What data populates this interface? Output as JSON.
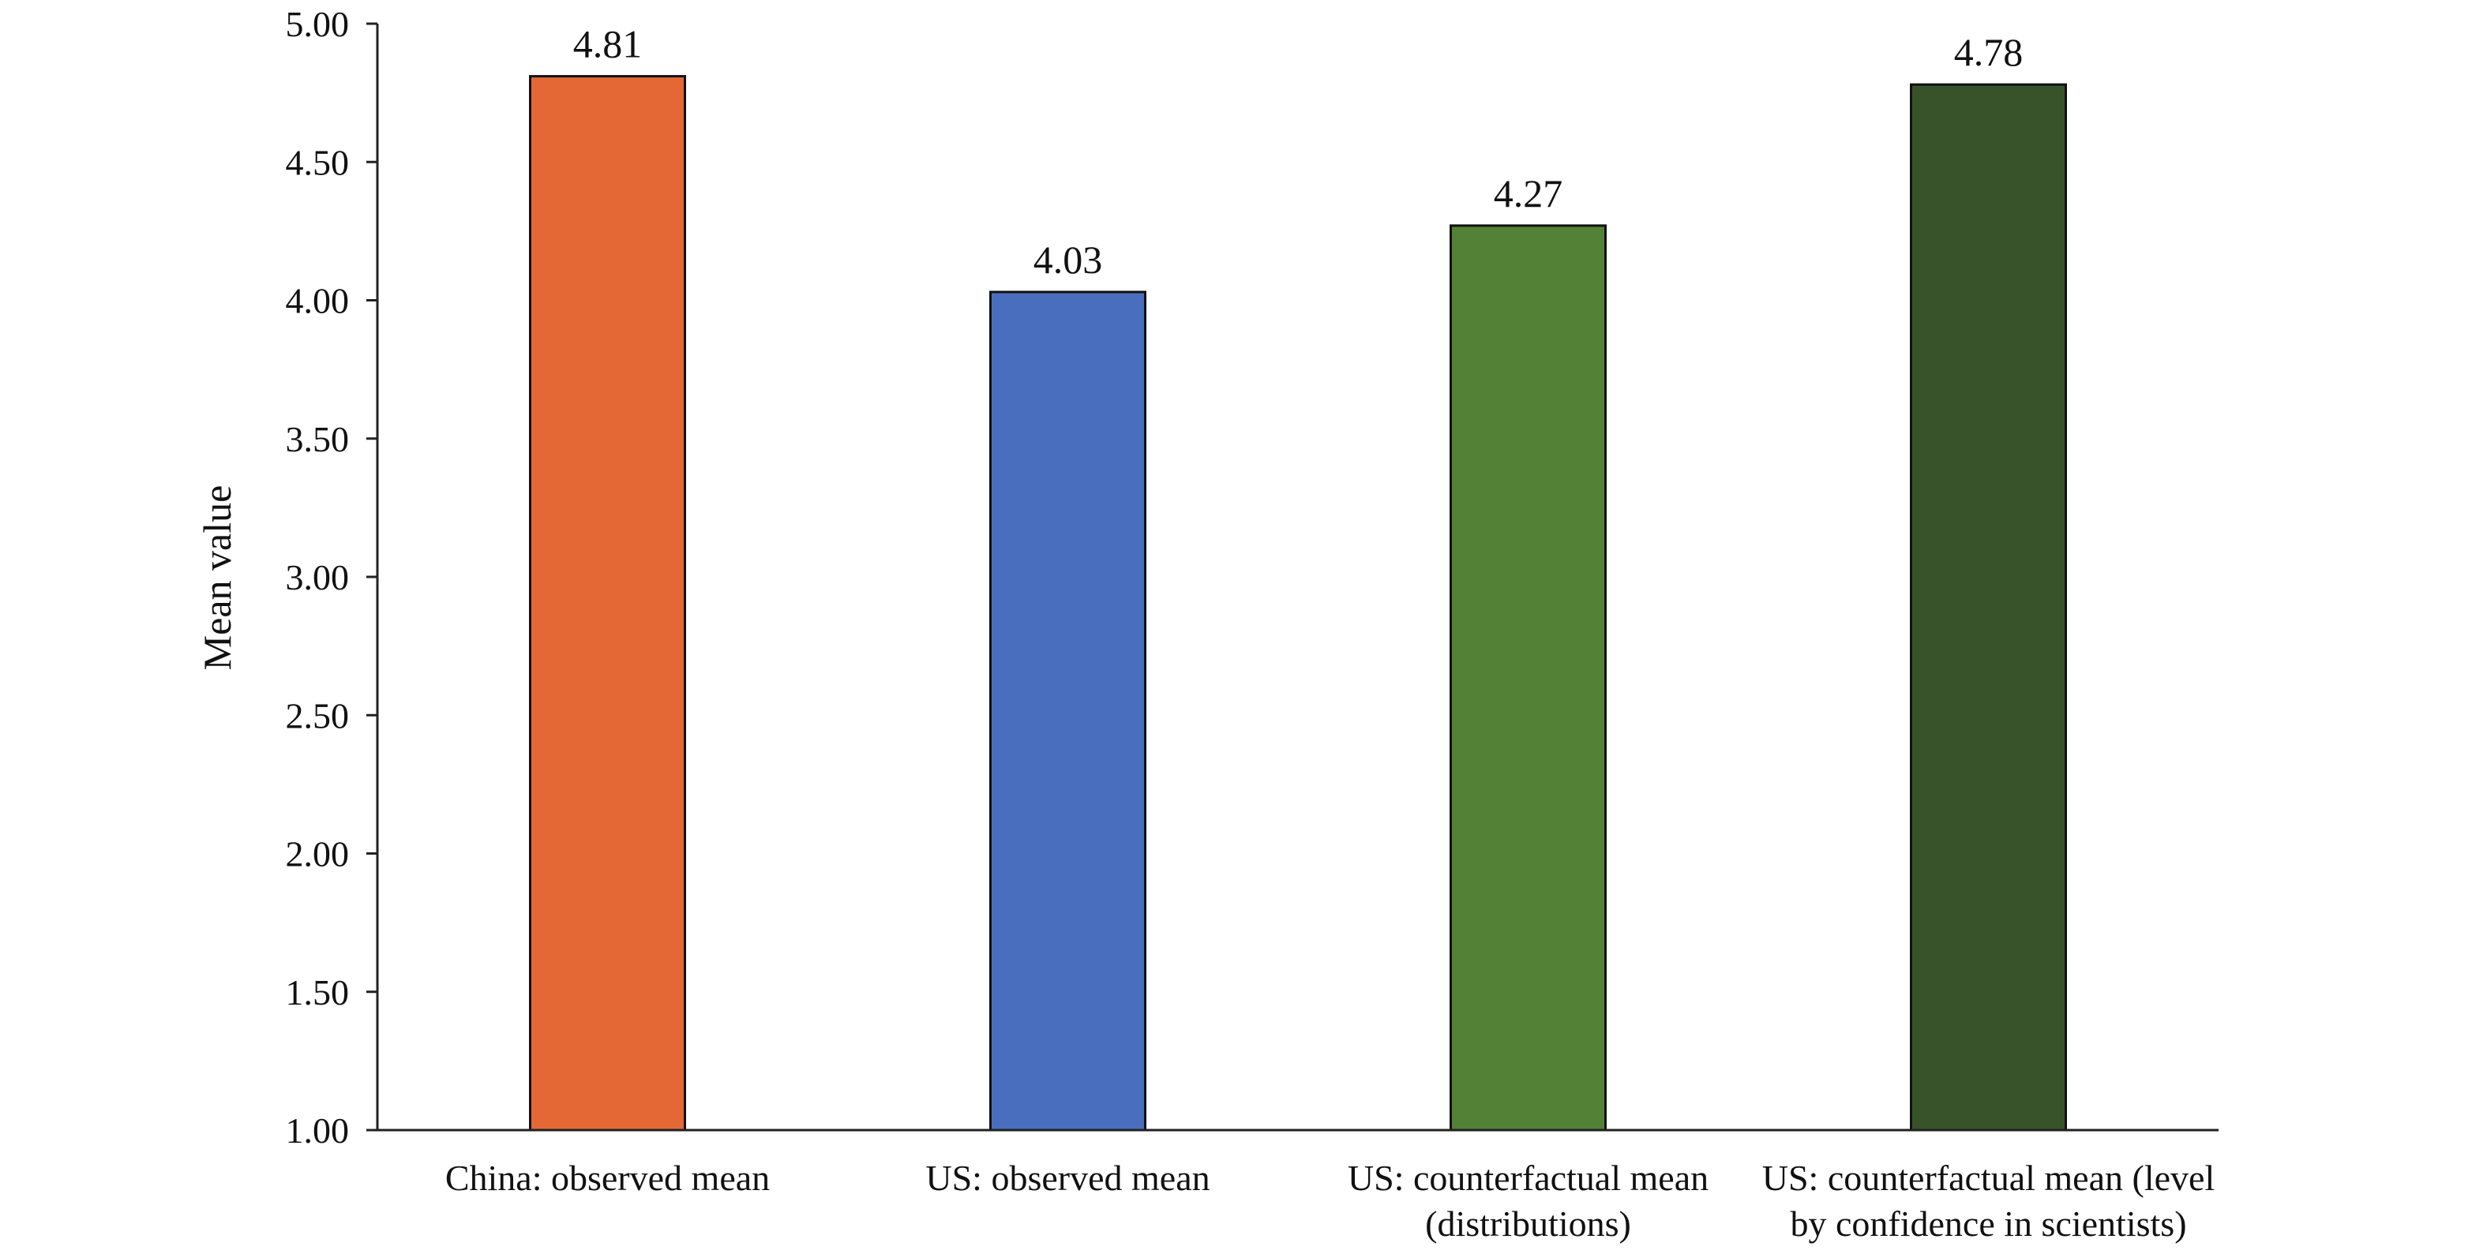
{
  "chart_data": {
    "type": "bar",
    "title": "",
    "xlabel": "",
    "ylabel": "Mean value",
    "ylim": [
      1.0,
      5.0
    ],
    "yticks": [
      1.0,
      1.5,
      2.0,
      2.5,
      3.0,
      3.5,
      4.0,
      4.5,
      5.0
    ],
    "ytick_labels": [
      "1.00",
      "1.50",
      "2.00",
      "2.50",
      "3.00",
      "3.50",
      "4.00",
      "4.50",
      "5.00"
    ],
    "grid": false,
    "legend": "none",
    "categories": [
      [
        "China: observed mean"
      ],
      [
        "US: observed mean"
      ],
      [
        "US: counterfactual mean",
        "(distributions)"
      ],
      [
        "US: counterfactual mean (level",
        "by confidence in scientists)"
      ]
    ],
    "values": [
      4.81,
      4.03,
      4.27,
      4.78
    ],
    "data_labels": [
      "4.81",
      "4.03",
      "4.27",
      "4.78"
    ],
    "colors": [
      "#E46835",
      "#4A6EBE",
      "#538135",
      "#38532A"
    ]
  }
}
